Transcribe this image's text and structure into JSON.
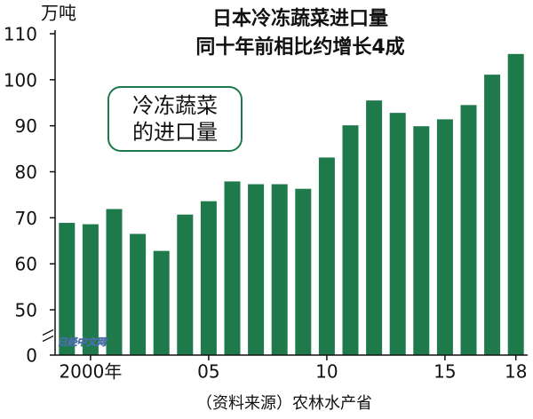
{
  "chart_data": {
    "type": "bar",
    "title": "日本冷冻蔬菜进口量",
    "subtitle": "同十年前相比约增长4成",
    "y_label": "万吨",
    "annotation": [
      "冷冻蔬菜",
      "的进口量"
    ],
    "source": "（资料来源）农林水产省",
    "watermark": "日经中文网",
    "categories": [
      null,
      "2000年",
      null,
      null,
      null,
      null,
      "05",
      null,
      null,
      null,
      null,
      "10",
      null,
      null,
      null,
      null,
      "15",
      null,
      null,
      "18"
    ],
    "values": [
      68.9,
      68.6,
      71.9,
      66.5,
      62.8,
      70.7,
      73.6,
      77.9,
      77.3,
      77.3,
      76.3,
      83.1,
      90.1,
      95.5,
      92.8,
      89.9,
      91.4,
      94.5,
      101.1,
      105.6
    ],
    "color": "#1e7a4b",
    "ylim": [
      0,
      110
    ],
    "axis_break": [
      0,
      50
    ],
    "yticks": [
      0,
      50,
      60,
      70,
      80,
      90,
      100,
      110
    ],
    "grid": false
  }
}
